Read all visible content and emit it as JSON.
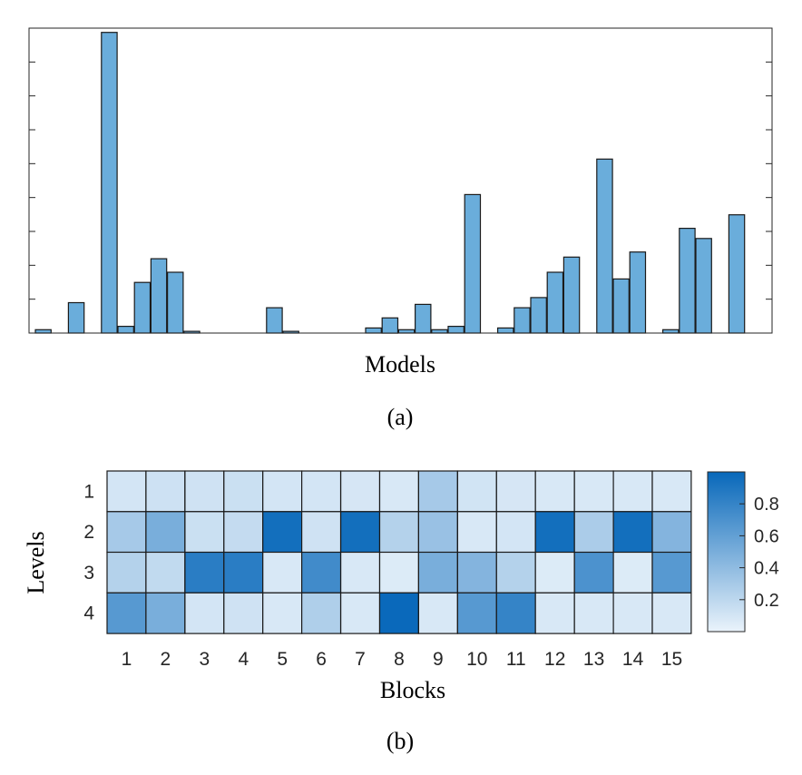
{
  "panel_a": {
    "xlabel": "Models",
    "caption": "(a)"
  },
  "panel_b": {
    "xlabel": "Blocks",
    "ylabel": "Levels",
    "caption": "(b)"
  },
  "colors": {
    "bar_fill": "#6aaddb",
    "bar_stroke": "#1a1a1a",
    "heat_low": "#eaf3fb",
    "heat_high": "#0868ba",
    "axis": "#262626"
  },
  "chart_data": [
    {
      "type": "bar",
      "title": "",
      "xlabel": "Models",
      "ylabel": "",
      "x": [
        1,
        2,
        3,
        4,
        5,
        6,
        7,
        8,
        9,
        10,
        11,
        12,
        13,
        14,
        15,
        16,
        17,
        18,
        19,
        20,
        21,
        22,
        23,
        24,
        25,
        26,
        27,
        28,
        29,
        30,
        31,
        32,
        33,
        34,
        35,
        36,
        37,
        38,
        39,
        40,
        41,
        42,
        43,
        44,
        45
      ],
      "values": [
        0.1,
        0,
        0.9,
        0,
        8.9,
        0.2,
        1.5,
        2.2,
        1.8,
        0.05,
        0,
        0,
        0,
        0,
        0.75,
        0.05,
        0,
        0,
        0,
        0,
        0.15,
        0.45,
        0.1,
        0.85,
        0.1,
        0.2,
        4.1,
        0,
        0.15,
        0.75,
        1.05,
        1.8,
        2.25,
        0,
        5.15,
        1.6,
        2.4,
        0,
        0.1,
        3.1,
        2.8,
        0,
        3.5,
        0,
        0
      ],
      "ylim": [
        0,
        9
      ],
      "y_ticks": 9,
      "tick_labels_shown": false
    },
    {
      "type": "heatmap",
      "title": "",
      "xlabel": "Blocks",
      "ylabel": "Levels",
      "x_categories": [
        "1",
        "2",
        "3",
        "4",
        "5",
        "6",
        "7",
        "8",
        "9",
        "10",
        "11",
        "12",
        "13",
        "14",
        "15"
      ],
      "y_categories": [
        "1",
        "2",
        "3",
        "4"
      ],
      "values": [
        [
          0.1,
          0.13,
          0.12,
          0.14,
          0.1,
          0.1,
          0.09,
          0.08,
          0.3,
          0.11,
          0.09,
          0.08,
          0.08,
          0.08,
          0.08
        ],
        [
          0.3,
          0.5,
          0.14,
          0.17,
          0.95,
          0.12,
          0.95,
          0.24,
          0.36,
          0.08,
          0.1,
          0.95,
          0.28,
          0.95,
          0.45
        ],
        [
          0.24,
          0.18,
          0.85,
          0.85,
          0.08,
          0.75,
          0.08,
          0.06,
          0.5,
          0.45,
          0.24,
          0.06,
          0.7,
          0.06,
          0.65
        ],
        [
          0.65,
          0.5,
          0.1,
          0.12,
          0.08,
          0.26,
          0.08,
          0.99,
          0.08,
          0.65,
          0.8,
          0.08,
          0.08,
          0.08,
          0.08
        ]
      ],
      "colorbar": {
        "range": [
          0.0,
          1.0
        ],
        "ticks": [
          "0.2",
          "0.4",
          "0.6",
          "0.8"
        ]
      }
    }
  ]
}
